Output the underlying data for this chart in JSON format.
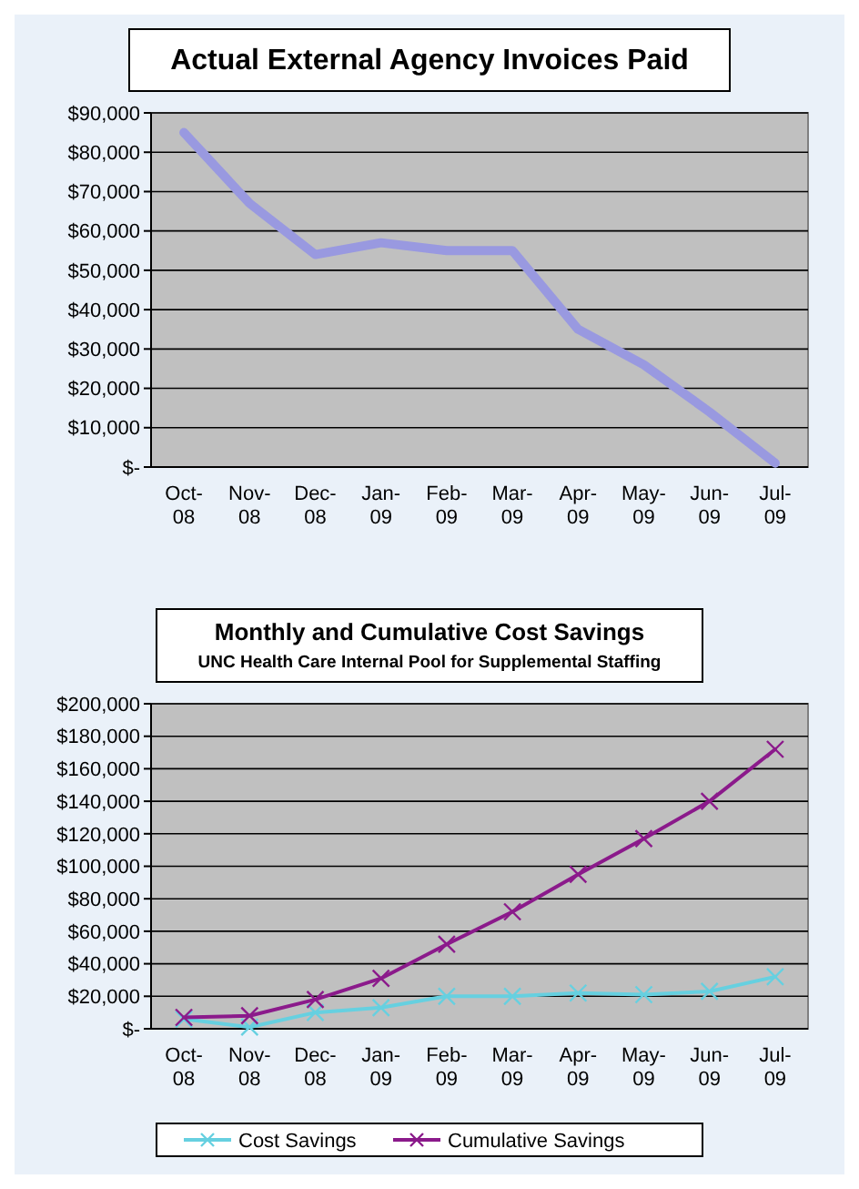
{
  "chart_data": [
    {
      "type": "line",
      "title": "Actual External Agency Invoices Paid",
      "categories": [
        "Oct-08",
        "Nov-08",
        "Dec-08",
        "Jan-09",
        "Feb-09",
        "Mar-09",
        "Apr-09",
        "May-09",
        "Jun-09",
        "Jul-09"
      ],
      "series": [
        {
          "color": "#9999e0",
          "values": [
            85000,
            67000,
            54000,
            57000,
            55000,
            55000,
            35000,
            26000,
            14000,
            1000
          ]
        }
      ],
      "ylim": [
        0,
        90000
      ],
      "yticks": [
        {
          "value": 0,
          "label": "$-"
        },
        {
          "value": 10000,
          "label": "$10,000"
        },
        {
          "value": 20000,
          "label": "$20,000"
        },
        {
          "value": 30000,
          "label": "$30,000"
        },
        {
          "value": 40000,
          "label": "$40,000"
        },
        {
          "value": 50000,
          "label": "$50,000"
        },
        {
          "value": 60000,
          "label": "$60,000"
        },
        {
          "value": 70000,
          "label": "$70,000"
        },
        {
          "value": 80000,
          "label": "$80,000"
        },
        {
          "value": 90000,
          "label": "$90,000"
        }
      ],
      "grid": "y",
      "legend": false
    },
    {
      "type": "line",
      "title": "Monthly and Cumulative Cost Savings",
      "subtitle": "UNC Health Care Internal Pool for Supplemental Staffing",
      "categories": [
        "Oct-08",
        "Nov-08",
        "Dec-08",
        "Jan-09",
        "Feb-09",
        "Mar-09",
        "Apr-09",
        "May-09",
        "Jun-09",
        "Jul-09"
      ],
      "series": [
        {
          "name": "Cost Savings",
          "color": "#66d0e0",
          "marker": "cross",
          "values": [
            6000,
            1000,
            10000,
            13000,
            20000,
            20000,
            22000,
            21000,
            23000,
            32000
          ]
        },
        {
          "name": "Cumulative Savings",
          "color": "#8b1a8b",
          "marker": "cross",
          "values": [
            7000,
            8000,
            18000,
            31000,
            52000,
            72000,
            95000,
            117000,
            140000,
            172000
          ]
        }
      ],
      "ylim": [
        0,
        200000
      ],
      "yticks": [
        {
          "value": 0,
          "label": "$-"
        },
        {
          "value": 20000,
          "label": "$20,000"
        },
        {
          "value": 40000,
          "label": "$40,000"
        },
        {
          "value": 60000,
          "label": "$60,000"
        },
        {
          "value": 80000,
          "label": "$80,000"
        },
        {
          "value": 100000,
          "label": "$100,000"
        },
        {
          "value": 120000,
          "label": "$120,000"
        },
        {
          "value": 140000,
          "label": "$140,000"
        },
        {
          "value": 160000,
          "label": "$160,000"
        },
        {
          "value": 180000,
          "label": "$180,000"
        },
        {
          "value": 200000,
          "label": "$200,000"
        }
      ],
      "grid": "y",
      "legend": "bottom"
    }
  ]
}
